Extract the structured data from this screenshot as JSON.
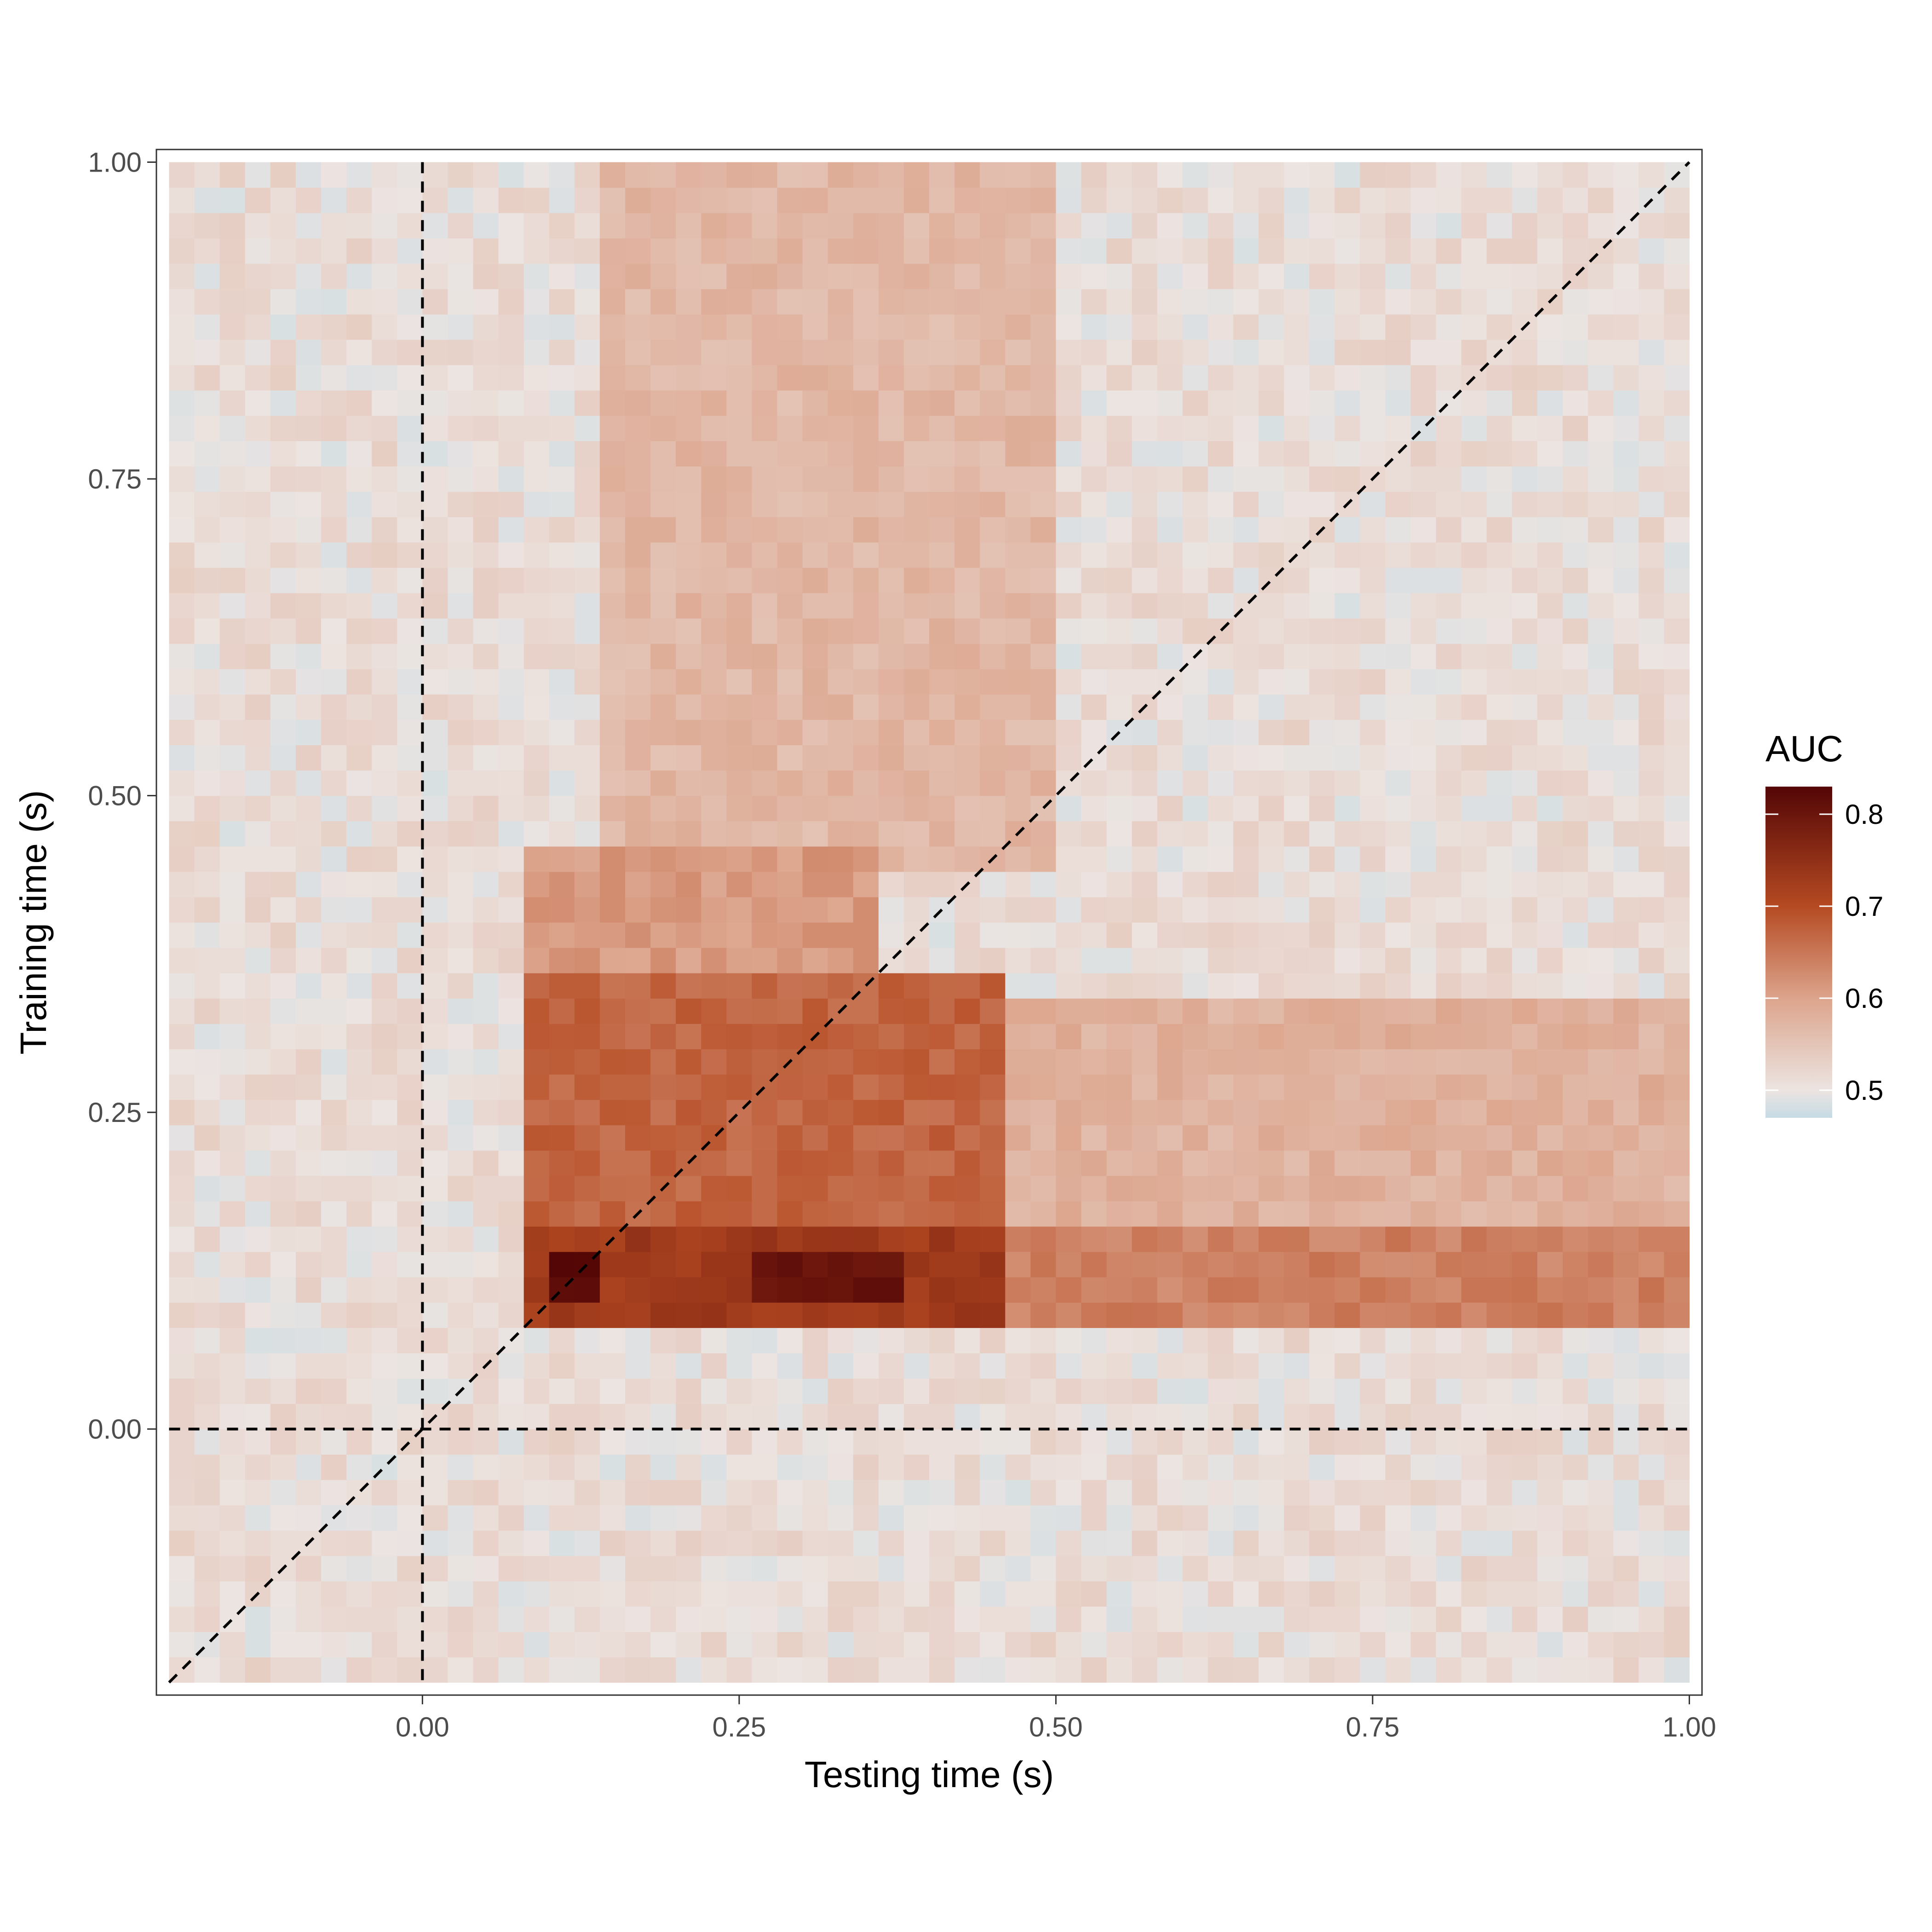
{
  "chart_data": {
    "type": "heatmap",
    "xlabel": "Testing time (s)",
    "ylabel": "Training time (s)",
    "xlim": [
      -0.21,
      1.01
    ],
    "ylim": [
      -0.21,
      1.01
    ],
    "x_ticks": [
      0.0,
      0.25,
      0.5,
      0.75,
      1.0
    ],
    "x_tick_labels": [
      "0.00",
      "0.25",
      "0.50",
      "0.75",
      "1.00"
    ],
    "y_ticks": [
      0.0,
      0.25,
      0.5,
      0.75,
      1.0
    ],
    "y_tick_labels": [
      "0.00",
      "0.25",
      "0.50",
      "0.75",
      "1.00"
    ],
    "grid_step_s": 0.02,
    "x_range": [
      -0.2,
      1.0
    ],
    "y_range": [
      -0.2,
      1.0
    ],
    "reference_lines": [
      {
        "kind": "vertical",
        "x": 0.0,
        "style": "dashed"
      },
      {
        "kind": "horizontal",
        "y": 0.0,
        "style": "dashed"
      },
      {
        "kind": "diagonal",
        "from": [
          -0.2,
          -0.2
        ],
        "to": [
          1.0,
          1.0
        ],
        "style": "dashed"
      }
    ],
    "legend": {
      "title": "AUC",
      "position": "right",
      "range": [
        0.47,
        0.83
      ],
      "ticks": [
        0.5,
        0.6,
        0.7,
        0.8
      ],
      "tick_labels": [
        "0.5",
        "0.6",
        "0.7",
        "0.8"
      ]
    },
    "color_scale": [
      {
        "value": 0.47,
        "color": "#c6dbe4"
      },
      {
        "value": 0.5,
        "color": "#ece4e1"
      },
      {
        "value": 0.6,
        "color": "#dca48c"
      },
      {
        "value": 0.7,
        "color": "#b54a22"
      },
      {
        "value": 0.83,
        "color": "#540606"
      }
    ],
    "regions": [
      {
        "x": [
          0.08,
          0.46
        ],
        "y": [
          0.08,
          0.16
        ],
        "value": 0.73,
        "note": "strong early band"
      },
      {
        "x": [
          0.1,
          0.15
        ],
        "y": [
          0.1,
          0.15
        ],
        "value": 0.82,
        "note": "peak"
      },
      {
        "x": [
          0.26,
          0.38
        ],
        "y": [
          0.1,
          0.14
        ],
        "value": 0.8,
        "note": "peak"
      },
      {
        "x": [
          0.46,
          1.0
        ],
        "y": [
          0.08,
          0.16
        ],
        "value": 0.64,
        "note": "band to end"
      },
      {
        "x": [
          0.07,
          0.46
        ],
        "y": [
          0.16,
          0.36
        ],
        "value": 0.67,
        "note": "generalization block"
      },
      {
        "x": [
          0.07,
          0.36
        ],
        "y": [
          0.36,
          0.46
        ],
        "value": 0.61,
        "note": "upper block"
      },
      {
        "x": [
          0.15,
          0.5
        ],
        "y": [
          0.44,
          1.0
        ],
        "value": 0.57,
        "note": "late training faint"
      },
      {
        "x": [
          0.46,
          1.0
        ],
        "y": [
          0.16,
          0.35
        ],
        "value": 0.58,
        "note": "late testing faint"
      }
    ]
  }
}
